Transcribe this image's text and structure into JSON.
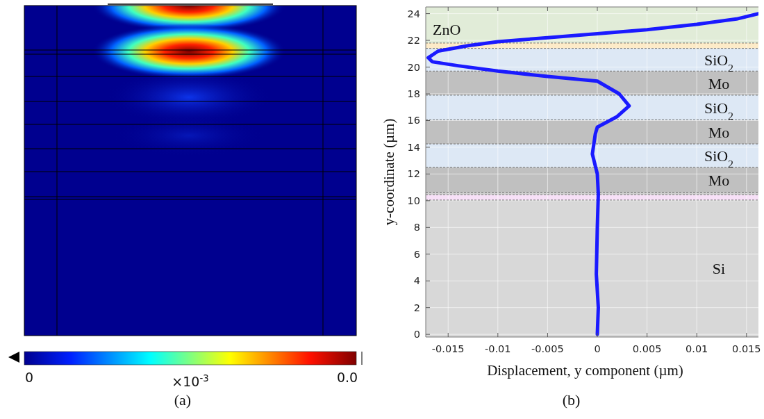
{
  "chart_data": [
    {
      "type": "other",
      "annotations": [
        "0",
        "×10$^{-3}$",
        "0.0",
        "(a)"
      ]
    },
    {
      "type": "line",
      "xlabel": "Displacement, y component (µm)",
      "ylabel": "y-coordinate (µm)",
      "annotations": [
        "(b)"
      ],
      "xlim": [
        -0.01725,
        0.0162
      ],
      "ylim": [
        -0.2,
        24.5
      ],
      "xticks": [
        -0.015,
        -0.01,
        -0.005,
        0,
        0.005,
        0.01,
        {
          "value": 0.015,
          "label": "0.015"
        }
      ],
      "yticks": [
        0,
        2,
        4,
        6,
        8,
        10,
        12,
        14,
        16,
        18,
        20,
        22,
        24
      ],
      "grid": true,
      "marker": "none",
      "line_style": "solid",
      "series": [
        {
          "color": "#1a1aff",
          "x": [
            0,
            0.0001,
            -0.0001,
            0,
            0.0001,
            0,
            -0.0005,
            -0.0002,
            0,
            0.002,
            0.0032,
            0.0022,
            0,
            -0.005,
            -0.01,
            -0.014,
            -0.0166,
            -0.017,
            -0.016,
            -0.013,
            -0.01,
            -0.005,
            0,
            0.005,
            0.01,
            0.014,
            0.0162
          ],
          "values": [
            0,
            2,
            4.5,
            8,
            10.5,
            12,
            13.5,
            15,
            15.5,
            16.3,
            17.1,
            18,
            18.95,
            19.3,
            19.7,
            20.1,
            20.4,
            20.7,
            21.2,
            21.6,
            21.9,
            22.2,
            22.5,
            22.8,
            23.2,
            23.6,
            24
          ]
        }
      ],
      "bands": [
        {
          "axis": "y",
          "from": -0.2,
          "to": 10.05,
          "label": "Si",
          "color": "#d8d8d8"
        },
        {
          "axis": "y",
          "from": 10.05,
          "to": 10.45,
          "color": "#f7e0f7"
        },
        {
          "axis": "y",
          "from": 10.45,
          "to": 10.6,
          "color": "#d0d0d0"
        },
        {
          "axis": "y",
          "from": 10.6,
          "to": 12.5,
          "label": "Mo",
          "color": "#c0c0c0"
        },
        {
          "axis": "y",
          "from": 12.5,
          "to": 14.25,
          "label": "SiO$_{2}$",
          "color": "#dde8f5"
        },
        {
          "axis": "y",
          "from": 14.25,
          "to": 16.05,
          "label": "Mo",
          "color": "#c0c0c0"
        },
        {
          "axis": "y",
          "from": 16.05,
          "to": 17.9,
          "label": "SiO$_{2}$",
          "color": "#dde8f5"
        },
        {
          "axis": "y",
          "from": 17.9,
          "to": 19.7,
          "label": "Mo",
          "color": "#c0c0c0"
        },
        {
          "axis": "y",
          "from": 19.7,
          "to": 21.4,
          "label": "SiO$_{2}$",
          "color": "#dde8f5"
        },
        {
          "axis": "y",
          "from": 21.4,
          "to": 21.8,
          "color": "#fdebc8"
        },
        {
          "axis": "y",
          "from": 21.8,
          "to": 24.5,
          "label": "ZnO",
          "color": "#e1ecd8"
        }
      ]
    }
  ]
}
